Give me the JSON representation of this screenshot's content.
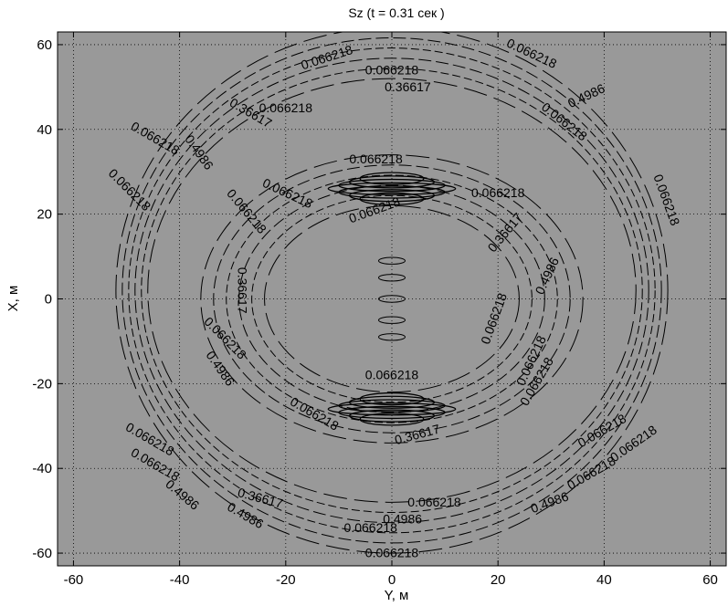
{
  "chart_data": {
    "type": "contour",
    "title": "Sz (t = 0.31 сек )",
    "xlabel": "Y, м",
    "ylabel": "X, м",
    "xlim": [
      -63,
      63
    ],
    "ylim": [
      -63,
      63
    ],
    "xticks": [
      -60,
      -40,
      -20,
      0,
      20,
      40,
      60
    ],
    "yticks": [
      60,
      40,
      20,
      0,
      -20,
      -40,
      -60
    ],
    "grid": true,
    "background": "#999999",
    "line_color": "#000000",
    "contour_levels": [
      "0.066218",
      "0.36617",
      "0.4986"
    ],
    "rings": [
      {
        "name": "outer",
        "center": [
          0,
          2
        ],
        "radius_y": [
          46,
          52
        ],
        "radius_x": [
          50,
          62
        ],
        "band_count": 6
      },
      {
        "name": "inner",
        "center": [
          0,
          0
        ],
        "radius_y": [
          24,
          36
        ],
        "radius_x": [
          22,
          34
        ],
        "band_count": 6
      }
    ],
    "center_features": [
      {
        "y": 0,
        "x": 9
      },
      {
        "y": 0,
        "x": 5
      },
      {
        "y": 0,
        "x": 0
      },
      {
        "y": 0,
        "x": -5
      },
      {
        "y": 0,
        "x": -9
      }
    ],
    "labels": [
      {
        "text": "0.066218",
        "y": -12,
        "x": 56,
        "rotate": -18
      },
      {
        "text": "0.066218",
        "y": 0,
        "x": 53,
        "rotate": 0
      },
      {
        "text": "0.066218",
        "y": 26,
        "x": 57,
        "rotate": 25
      },
      {
        "text": "0.36617",
        "y": 3,
        "x": 49,
        "rotate": 0
      },
      {
        "text": "0.4986",
        "y": 37,
        "x": 47,
        "rotate": -25
      },
      {
        "text": "0.066218",
        "y": 32,
        "x": 41,
        "rotate": 38
      },
      {
        "text": "0.066218",
        "y": 51,
        "x": 23,
        "rotate": 70
      },
      {
        "text": "0.36617",
        "y": -27,
        "x": 43,
        "rotate": 30
      },
      {
        "text": "0.066218",
        "y": -45,
        "x": 37,
        "rotate": 30
      },
      {
        "text": "0.4986",
        "y": -37,
        "x": 34,
        "rotate": 55
      },
      {
        "text": "0.066218",
        "y": -50,
        "x": 25,
        "rotate": 45
      },
      {
        "text": "0.066218",
        "y": -20,
        "x": 44,
        "rotate": 0
      },
      {
        "text": "0.066218",
        "y": -3,
        "x": 32,
        "rotate": 0
      },
      {
        "text": "0.066218",
        "y": 20,
        "x": 24,
        "rotate": 0
      },
      {
        "text": "0.066218",
        "y": -20,
        "x": 24,
        "rotate": 25
      },
      {
        "text": "0.066218",
        "y": -28,
        "x": 20,
        "rotate": 50
      },
      {
        "text": "0.066218",
        "y": -3,
        "x": 20,
        "rotate": -20
      },
      {
        "text": "0.36617",
        "y": 22,
        "x": 15,
        "rotate": -50
      },
      {
        "text": "0.4986",
        "y": 30,
        "x": 5,
        "rotate": -65
      },
      {
        "text": "0.36617",
        "y": -29,
        "x": 2,
        "rotate": 90
      },
      {
        "text": "0.066218",
        "y": -32,
        "x": -10,
        "rotate": 45
      },
      {
        "text": "0.4986",
        "y": -33,
        "x": -17,
        "rotate": 55
      },
      {
        "text": "0.066218",
        "y": 20,
        "x": -5,
        "rotate": -70
      },
      {
        "text": "0.066218",
        "y": 28,
        "x": -20,
        "rotate": -60
      },
      {
        "text": "0.066218",
        "y": 27,
        "x": -15,
        "rotate": -65
      },
      {
        "text": "0.066218",
        "y": 0,
        "x": -19,
        "rotate": 0
      },
      {
        "text": "0.066218",
        "y": -15,
        "x": -28,
        "rotate": 30
      },
      {
        "text": "0.36617",
        "y": 5,
        "x": -33,
        "rotate": -15
      },
      {
        "text": "0.066218",
        "y": -46,
        "x": -34,
        "rotate": 30
      },
      {
        "text": "0.066218",
        "y": -45,
        "x": -40,
        "rotate": 30
      },
      {
        "text": "0.4986",
        "y": -40,
        "x": -47,
        "rotate": 40
      },
      {
        "text": "0.36617",
        "y": -25,
        "x": -48,
        "rotate": 15
      },
      {
        "text": "0.4986",
        "y": -28,
        "x": -52,
        "rotate": 30
      },
      {
        "text": "0.066218",
        "y": 8,
        "x": -49,
        "rotate": 0
      },
      {
        "text": "0.066218",
        "y": -4,
        "x": -55,
        "rotate": 0
      },
      {
        "text": "0.4986",
        "y": 2,
        "x": -53,
        "rotate": 0
      },
      {
        "text": "0.066218",
        "y": 0,
        "x": -61,
        "rotate": 0
      },
      {
        "text": "0.4986",
        "y": 30,
        "x": -49,
        "rotate": -20
      },
      {
        "text": "0.066218",
        "y": 38,
        "x": -42,
        "rotate": -30
      },
      {
        "text": "0.066218",
        "y": 46,
        "x": -35,
        "rotate": -35
      },
      {
        "text": "0.066218",
        "y": 40,
        "x": -32,
        "rotate": -30
      }
    ]
  }
}
